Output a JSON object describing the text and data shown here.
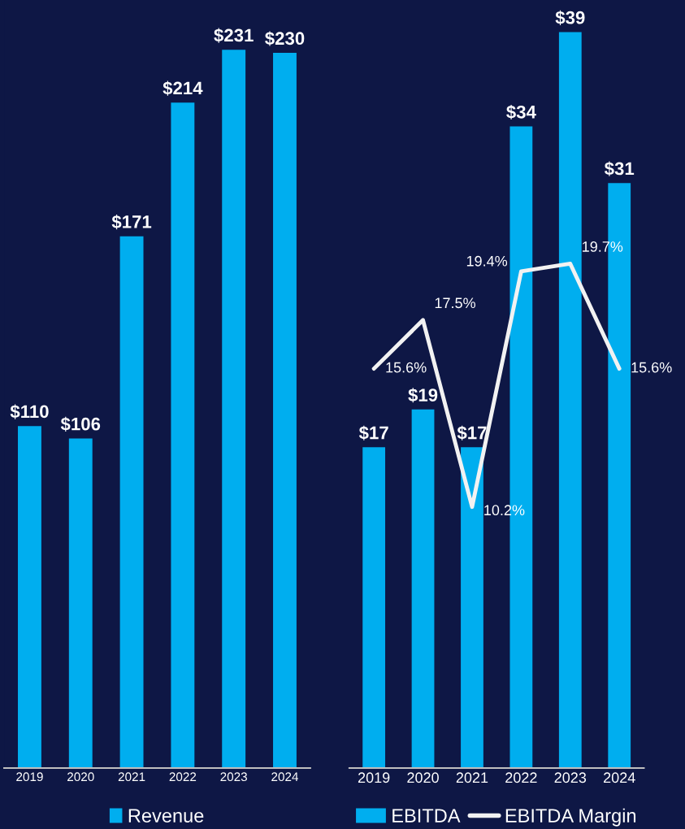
{
  "chart_data": [
    {
      "type": "bar",
      "categories": [
        "2019",
        "2020",
        "2021",
        "2022",
        "2023",
        "2024"
      ],
      "series": [
        {
          "name": "Revenue",
          "color": "#00aeef",
          "values": [
            110,
            106,
            171,
            214,
            231,
            230
          ],
          "value_labels": [
            "$110",
            "$106",
            "$171",
            "$214",
            "$231",
            "$230"
          ]
        }
      ],
      "ylim": [
        0,
        247
      ],
      "tick_labels": "x",
      "legend": "bottom",
      "grid": false
    },
    {
      "type": "bar",
      "categories": [
        "2019",
        "2020",
        "2021",
        "2022",
        "2023",
        "2024"
      ],
      "series": [
        {
          "name": "EBITDA",
          "color": "#00aeef",
          "values": [
            17,
            19,
            17,
            34,
            39,
            31
          ],
          "value_labels": [
            "$17",
            "$19",
            "$17",
            "$34",
            "$39",
            "$31"
          ]
        },
        {
          "name": "EBITDA Margin",
          "type": "line",
          "axis": "y2",
          "color": "#f2f2f2",
          "values": [
            15.6,
            17.5,
            10.2,
            19.4,
            19.7,
            15.6
          ],
          "value_labels": [
            "15.6%",
            "17.5%",
            "10.2%",
            "19.4%",
            "19.7%",
            "15.6%"
          ]
        }
      ],
      "ylim": [
        0,
        40.7
      ],
      "y2lim": [
        0,
        30
      ],
      "tick_labels": "x",
      "legend": "bottom",
      "grid": false,
      "marker": "none",
      "line_style": "solid"
    }
  ]
}
